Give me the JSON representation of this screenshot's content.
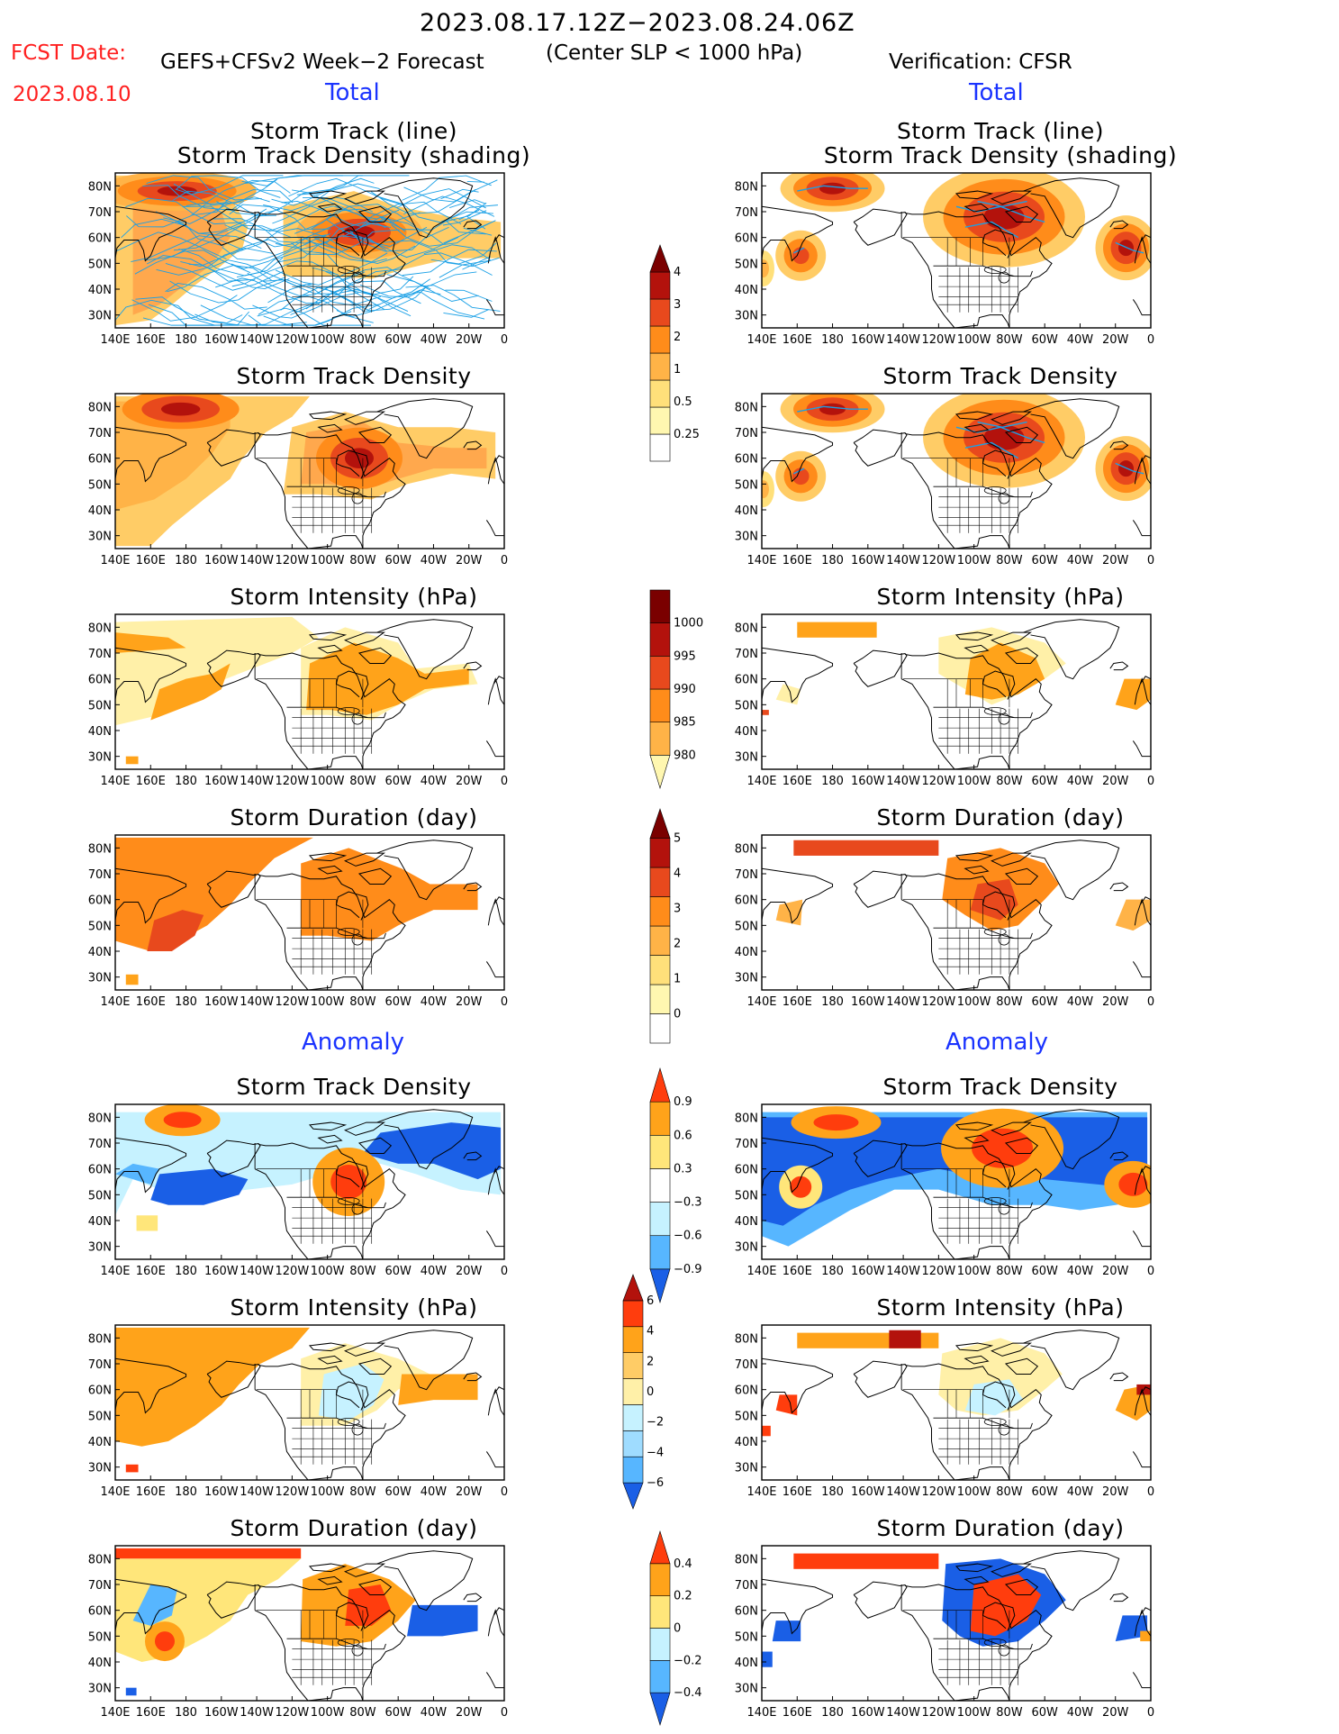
{
  "header": {
    "date_range": "2023.08.17.12Z−2023.08.24.06Z",
    "fcst_label": "FCST Date:",
    "forecast_name": "GEFS+CFSv2 Week−2 Forecast",
    "center_slp": "(Center SLP < 1000 hPa)",
    "fcst_date": "2023.08.10",
    "verification": "Verification: CFSR"
  },
  "sections": {
    "left_total": "Total",
    "right_total": "Total",
    "left_anomaly": "Anomaly",
    "right_anomaly": "Anomaly"
  },
  "titles": {
    "track_line": "Storm Track (line)",
    "track_density_shading": "Storm Track Density (shading)",
    "track_density": "Storm Track Density",
    "intensity": "Storm Intensity (hPa)",
    "duration": "Storm Duration (day)"
  },
  "axes": {
    "lon_labels": [
      "140E",
      "160E",
      "180",
      "160W",
      "140W",
      "120W",
      "100W",
      "80W",
      "60W",
      "40W",
      "20W",
      "0"
    ],
    "lat_labels": [
      "80N",
      "70N",
      "60N",
      "50N",
      "40N",
      "30N"
    ]
  },
  "colorbars": {
    "density_total": [
      "4",
      "3",
      "2",
      "1",
      "0.5",
      "0.25"
    ],
    "intensity_total": [
      "1000",
      "995",
      "990",
      "985",
      "980"
    ],
    "duration_total": [
      "5",
      "4",
      "3",
      "2",
      "1",
      "0"
    ],
    "density_anom": [
      "0.9",
      "0.6",
      "0.3",
      "−0.3",
      "−0.6",
      "−0.9"
    ],
    "intensity_anom": [
      "6",
      "4",
      "2",
      "0",
      "−2",
      "−4",
      "−6"
    ],
    "duration_anom": [
      "0.4",
      "0.2",
      "0",
      "−0.2",
      "−0.4"
    ]
  },
  "colors": {
    "density_scale": [
      "#fff7b0",
      "#ffe07a",
      "#ffb347",
      "#ff8c1a",
      "#e8491d",
      "#b3120c",
      "#7a0000"
    ],
    "anom_pos": [
      "#ffe67a",
      "#ffa31a",
      "#ff3d0d"
    ],
    "anom_neg": [
      "#c6f2ff",
      "#57b6ff",
      "#1a5fe6"
    ],
    "track_line": "#1aa0e6"
  }
}
